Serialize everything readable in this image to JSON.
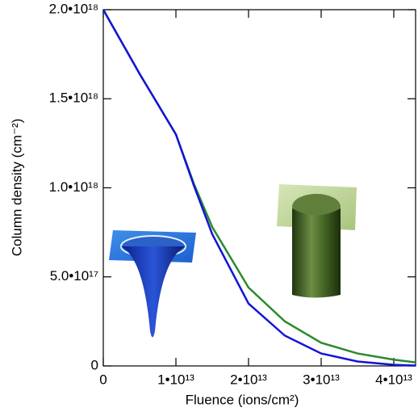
{
  "chart_data": {
    "type": "line",
    "xlabel": "Fluence (ions/cm²)",
    "ylabel": "Column density (cm⁻²)",
    "x": [
      0,
      5000000000000.0,
      10000000000000.0,
      12500000000000.0,
      15000000000000.0,
      20000000000000.0,
      25000000000000.0,
      30000000000000.0,
      35000000000000.0,
      40000000000000.0,
      43000000000000.0
    ],
    "series": [
      {
        "color": "#2a8a2a",
        "values": [
          2e+18,
          1.64e+18,
          1.3e+18,
          1.02e+18,
          7.8e+17,
          4.4e+17,
          2.5e+17,
          1.3e+17,
          7e+16,
          3.5e+16,
          2e+16
        ]
      },
      {
        "color": "#1414d8",
        "values": [
          2e+18,
          1.64e+18,
          1.3e+18,
          1.01e+18,
          7.4e+17,
          3.5e+17,
          1.7e+17,
          7e+16,
          2.5e+16,
          6000000000000000.0,
          2000000000000000.0
        ]
      }
    ],
    "xlim": [
      0,
      43000000000000.0
    ],
    "ylim": [
      0,
      2e+18
    ],
    "xticks": [
      0,
      {
        "value": 10000000000000.0,
        "label": "1•10¹³"
      },
      {
        "value": 20000000000000.0,
        "label": "2•10¹³"
      },
      {
        "value": 30000000000000.0,
        "label": "3•10¹³"
      },
      {
        "value": 40000000000000.0,
        "label": "4•10¹³"
      }
    ],
    "yticks": [
      0,
      {
        "value": 5e+17,
        "label": "5.0•10¹⁷"
      },
      {
        "value": 1e+18,
        "label": "1.0•10¹⁸"
      },
      {
        "value": 1.5e+18,
        "label": "1.5•10¹⁸"
      },
      {
        "value": 2e+18,
        "label": "2.0•10¹⁸"
      }
    ]
  }
}
